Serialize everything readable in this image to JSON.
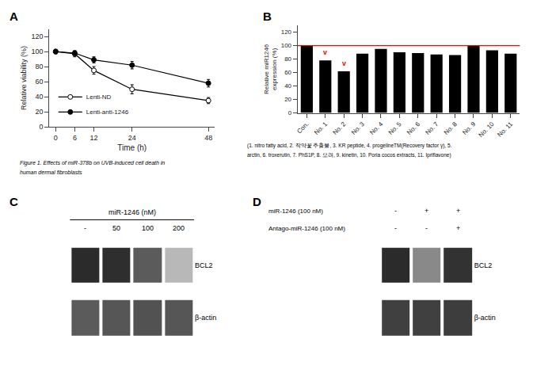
{
  "chart_data": [
    {
      "type": "line",
      "title": "A",
      "x": [
        0,
        6,
        12,
        24,
        48
      ],
      "xlabel": "Time (h)",
      "ylabel": "Relative viability (%)",
      "xlim": [
        -2,
        50
      ],
      "xticks": [
        0,
        6,
        12,
        24,
        48
      ],
      "ylim": [
        0,
        130
      ],
      "yticks": [
        0,
        20,
        40,
        60,
        80,
        100,
        120
      ],
      "grid": false,
      "legend": "lower left",
      "series": [
        {
          "name": "Lenti-ND",
          "color": "#000000",
          "marker": "open_circle",
          "values": [
            100,
            97,
            75,
            50,
            35
          ],
          "errors": [
            3,
            4,
            5,
            6,
            4
          ]
        },
        {
          "name": "Lenti-anti-1246",
          "color": "#000000",
          "marker": "circle",
          "values": [
            100,
            98,
            89,
            82,
            58
          ],
          "errors": [
            2,
            3,
            4,
            5,
            5
          ]
        }
      ],
      "annotations": [
        {
          "text": "Figure 1. Effects of miR-378b on UVB-induced cell death in"
        },
        {
          "text": "human dermal fibroblasts"
        }
      ]
    },
    {
      "type": "bar",
      "title": "B",
      "categories": [
        "Con.",
        "No. 1",
        "No. 2",
        "No. 3",
        "No. 4",
        "No. 5",
        "No. 6",
        "No. 7",
        "No. 8",
        "No. 9",
        "No. 10",
        "No. 11"
      ],
      "values": [
        100,
        78,
        62,
        88,
        95,
        90,
        89,
        87,
        86,
        100,
        93,
        88
      ],
      "color": "#000000",
      "ylabel": "Relative miR1246\nexpression (%)",
      "ylim": [
        0,
        130
      ],
      "yticks": [
        0,
        20,
        40,
        60,
        80,
        100,
        120
      ],
      "grid": false,
      "ref_line": {
        "value": 100,
        "color": "#ff0000"
      },
      "annotations": [
        {
          "category": "No. 1",
          "text": "v",
          "color": "#ff0000"
        },
        {
          "category": "No. 2",
          "text": "v",
          "color": "#ff0000"
        },
        {
          "text": "(1. nitro fatty acid, 2. 작약꽃 추출물, 3. KR peptide, 4. progelineTM(Recovery factor γ), 5."
        },
        {
          "text": "arctin, 6. troxerutin, 7. PhS1P, 8. 모려, 9. kinetin, 10. Poria cocos extracts, 11. Ipriflavone)"
        }
      ]
    },
    {
      "type": "heatmap",
      "title": "C",
      "xlabel": "miR-1246 (nM)",
      "categories": [
        "-",
        "50",
        "100",
        "200"
      ],
      "rows": [
        "BCL2",
        "β-actin"
      ],
      "values": [
        [
          0.82,
          0.8,
          0.55,
          0.04
        ],
        [
          0.55,
          0.58,
          0.6,
          0.58
        ]
      ],
      "zlim": [
        0,
        1
      ]
    },
    {
      "type": "heatmap",
      "title": "D",
      "condition_rows": [
        {
          "name": "miR-1246 (100 nM)",
          "values": [
            "-",
            "+",
            "+"
          ]
        },
        {
          "name": "Antago-miR-1246 (100 nM)",
          "values": [
            "-",
            "-",
            "+"
          ]
        }
      ],
      "rows": [
        "BCL2",
        "β-actin"
      ],
      "values": [
        [
          0.82,
          0.3,
          0.78
        ],
        [
          0.7,
          0.7,
          0.72
        ]
      ],
      "zlim": [
        0,
        1
      ]
    }
  ]
}
